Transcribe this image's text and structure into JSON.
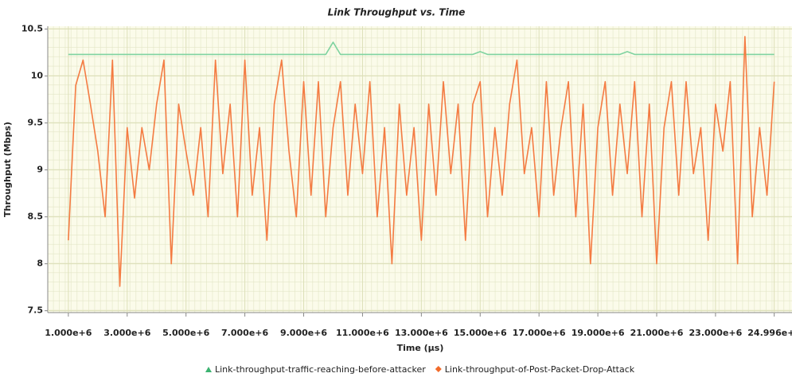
{
  "chart_data": {
    "type": "line",
    "title": "Link Throughput vs. Time",
    "x_label": "Time (μs)",
    "y_label": "Throughput (Mbps)",
    "x": [
      1000000,
      1250000,
      1500000,
      1750000,
      2000000,
      2250000,
      2500000,
      2750000,
      3000000,
      3250000,
      3500000,
      3750000,
      4000000,
      4250000,
      4500000,
      4750000,
      5000000,
      5250000,
      5500000,
      5750000,
      6000000,
      6250000,
      6500000,
      6750000,
      7000000,
      7250000,
      7500000,
      7750000,
      8000000,
      8250000,
      8500000,
      8750000,
      9000000,
      9250000,
      9500000,
      9750000,
      10000000,
      10250000,
      10500000,
      10750000,
      11000000,
      11250000,
      11500000,
      11750000,
      12000000,
      12250000,
      12500000,
      12750000,
      13000000,
      13250000,
      13500000,
      13750000,
      14000000,
      14250000,
      14500000,
      14750000,
      15000000,
      15250000,
      15500000,
      15750000,
      16000000,
      16250000,
      16500000,
      16750000,
      17000000,
      17250000,
      17500000,
      17750000,
      18000000,
      18250000,
      18500000,
      18750000,
      19000000,
      19250000,
      19500000,
      19750000,
      20000000,
      20250000,
      20500000,
      20750000,
      21000000,
      21250000,
      21500000,
      21750000,
      22000000,
      22250000,
      22500000,
      22750000,
      23000000,
      23250000,
      23500000,
      23750000,
      24000000,
      24250000,
      24500000,
      24750000,
      24996000
    ],
    "series": [
      {
        "name": "Link-throughput-traffic-reaching-before-attacker",
        "color": "#7fd3a0",
        "marker_color": "#3cb371",
        "values": [
          10.23,
          10.23,
          10.23,
          10.23,
          10.23,
          10.23,
          10.23,
          10.23,
          10.23,
          10.23,
          10.23,
          10.23,
          10.23,
          10.23,
          10.23,
          10.23,
          10.23,
          10.23,
          10.23,
          10.23,
          10.23,
          10.23,
          10.23,
          10.23,
          10.23,
          10.23,
          10.23,
          10.23,
          10.23,
          10.23,
          10.23,
          10.23,
          10.23,
          10.23,
          10.23,
          10.23,
          10.36,
          10.23,
          10.23,
          10.23,
          10.23,
          10.23,
          10.23,
          10.23,
          10.23,
          10.23,
          10.23,
          10.23,
          10.23,
          10.23,
          10.23,
          10.23,
          10.23,
          10.23,
          10.23,
          10.23,
          10.26,
          10.23,
          10.23,
          10.23,
          10.23,
          10.23,
          10.23,
          10.23,
          10.23,
          10.23,
          10.23,
          10.23,
          10.23,
          10.23,
          10.23,
          10.23,
          10.23,
          10.23,
          10.23,
          10.23,
          10.26,
          10.23,
          10.23,
          10.23,
          10.23,
          10.23,
          10.23,
          10.23,
          10.23,
          10.23,
          10.23,
          10.23,
          10.23,
          10.23,
          10.23,
          10.23,
          10.23,
          10.23,
          10.23,
          10.23,
          10.23
        ]
      },
      {
        "name": "Link-throughput-of-Post-Packet-Drop-Attack",
        "color": "#f47b42",
        "marker_color": "#f26b2a",
        "values": [
          8.25,
          9.9,
          10.17,
          9.7,
          9.2,
          8.5,
          10.17,
          7.76,
          9.45,
          8.7,
          9.45,
          9.0,
          9.7,
          10.17,
          8.0,
          9.7,
          9.2,
          8.73,
          9.45,
          8.5,
          10.17,
          8.96,
          9.7,
          8.5,
          10.17,
          8.73,
          9.45,
          8.25,
          9.7,
          10.17,
          9.2,
          8.5,
          9.94,
          8.73,
          9.94,
          8.5,
          9.45,
          9.94,
          8.73,
          9.7,
          8.96,
          9.94,
          8.5,
          9.45,
          8.0,
          9.7,
          8.73,
          9.45,
          8.25,
          9.7,
          8.73,
          9.94,
          8.96,
          9.7,
          8.25,
          9.7,
          9.94,
          8.5,
          9.45,
          8.73,
          9.7,
          10.17,
          8.96,
          9.45,
          8.5,
          9.94,
          8.73,
          9.45,
          9.94,
          8.5,
          9.7,
          8.0,
          9.45,
          9.94,
          8.73,
          9.7,
          8.96,
          9.94,
          8.5,
          9.7,
          8.0,
          9.45,
          9.94,
          8.73,
          9.94,
          8.96,
          9.45,
          8.25,
          9.7,
          9.2,
          9.94,
          8.0,
          10.42,
          8.5,
          9.45,
          8.73,
          9.94
        ]
      }
    ],
    "xlim": [
      300000,
      25600000
    ],
    "xticks": [
      {
        "value": 1000000,
        "label": "1.000e+6"
      },
      {
        "value": 3000000,
        "label": "3.000e+6"
      },
      {
        "value": 5000000,
        "label": "5.000e+6"
      },
      {
        "value": 7000000,
        "label": "7.000e+6"
      },
      {
        "value": 9000000,
        "label": "9.000e+6"
      },
      {
        "value": 11000000,
        "label": "11.000e+6"
      },
      {
        "value": 13000000,
        "label": "13.000e+6"
      },
      {
        "value": 15000000,
        "label": "15.000e+6"
      },
      {
        "value": 17000000,
        "label": "17.000e+6"
      },
      {
        "value": 19000000,
        "label": "19.000e+6"
      },
      {
        "value": 21000000,
        "label": "21.000e+6"
      },
      {
        "value": 23000000,
        "label": "23.000e+6"
      },
      {
        "value": 24996000,
        "label": "24.996e+6"
      }
    ],
    "ylim": [
      7.48,
      10.53
    ],
    "yticks": [
      7.5,
      8,
      8.5,
      9,
      9.5,
      10,
      10.5
    ],
    "grid": true,
    "legend": "bottom"
  }
}
